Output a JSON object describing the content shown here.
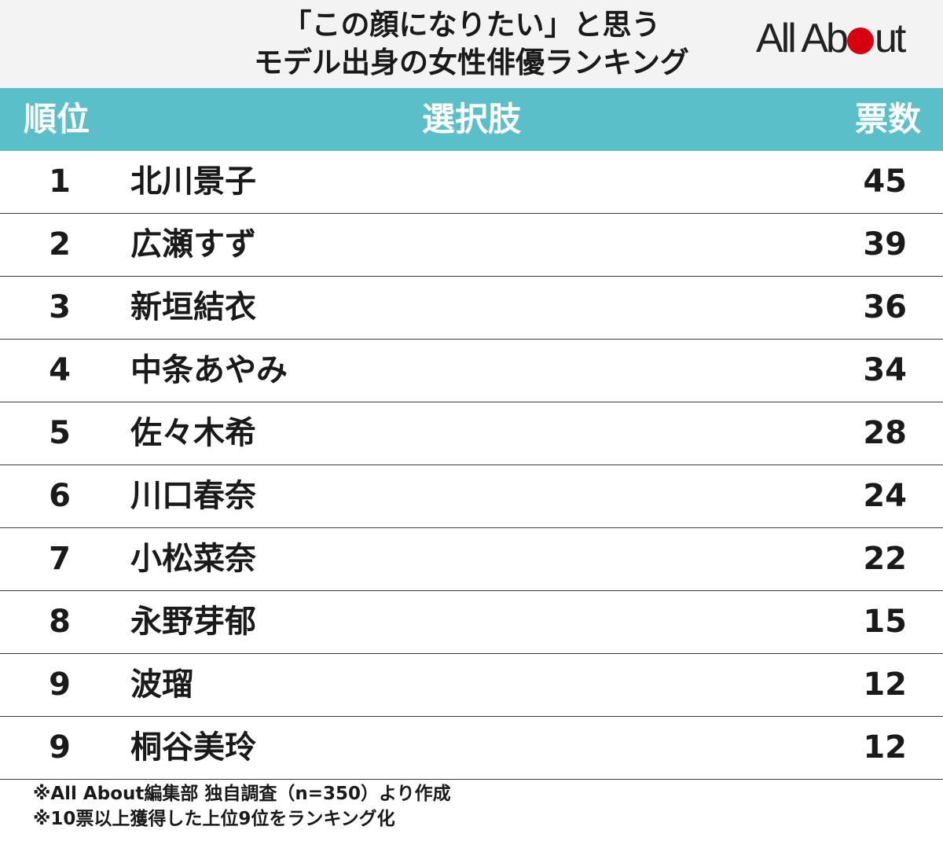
{
  "title": {
    "line1": "「この顔になりたい」と思う",
    "line2": "モデル出身の女性俳優ランキング"
  },
  "logo": {
    "part1": "All Ab",
    "part2": "ut",
    "dot_color": "#d7000f"
  },
  "colors": {
    "header_band": "#5abfc9",
    "header_background": "#f3f3f3"
  },
  "chart_data": {
    "type": "table",
    "columns": [
      "順位",
      "選択肢",
      "票数"
    ],
    "rows": [
      {
        "rank": "1",
        "name": "北川景子",
        "votes": "45"
      },
      {
        "rank": "2",
        "name": "広瀬すず",
        "votes": "39"
      },
      {
        "rank": "3",
        "name": "新垣結衣",
        "votes": "36"
      },
      {
        "rank": "4",
        "name": "中条あやみ",
        "votes": "34"
      },
      {
        "rank": "5",
        "name": "佐々木希",
        "votes": "28"
      },
      {
        "rank": "6",
        "name": "川口春奈",
        "votes": "24"
      },
      {
        "rank": "7",
        "name": "小松菜奈",
        "votes": "22"
      },
      {
        "rank": "8",
        "name": "永野芽郁",
        "votes": "15"
      },
      {
        "rank": "9",
        "name": "波瑠",
        "votes": "12"
      },
      {
        "rank": "9",
        "name": "桐谷美玲",
        "votes": "12"
      }
    ]
  },
  "notes": [
    "※All About編集部 独自調査（n=350）より作成",
    "※10票以上獲得した上位9位をランキング化"
  ]
}
